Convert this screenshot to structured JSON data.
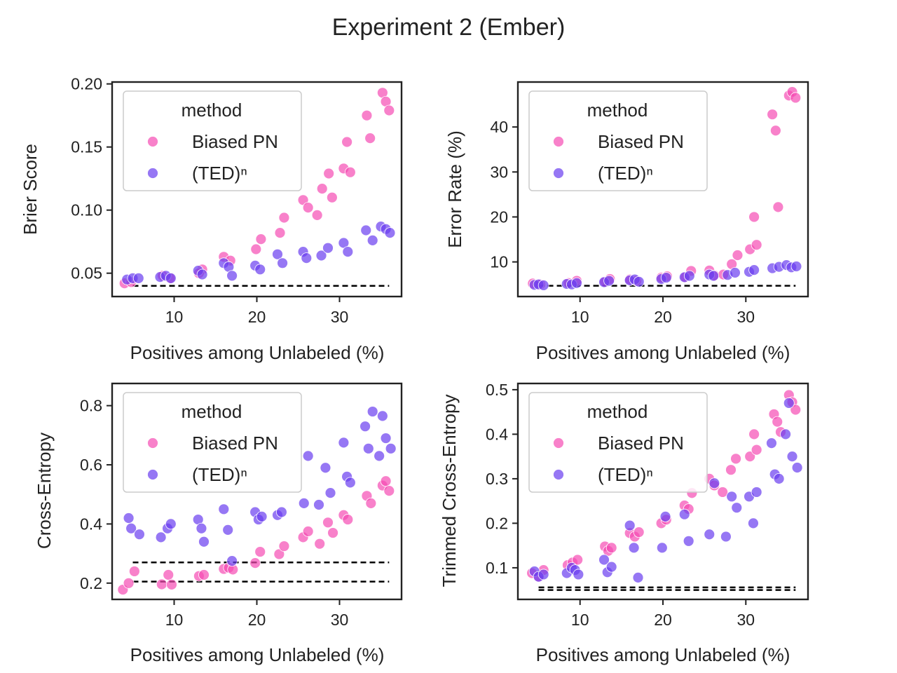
{
  "figure": {
    "title": "Experiment 2 (Ember)"
  },
  "colors": {
    "biased_pn": "#f54cb4",
    "ted_n": "#6a3df0",
    "frame": "#222222",
    "reference": "#000000"
  },
  "chart_data": [
    {
      "type": "scatter",
      "ylabel": "Brier Score",
      "xlabel": "Positives among Unlabeled (%)",
      "xlim": [
        2.5,
        37.5
      ],
      "ylim": [
        0.0315,
        0.2015
      ],
      "xticks": [
        10,
        20,
        30
      ],
      "yticks": [
        0.05,
        0.1,
        0.15,
        0.2
      ],
      "ytick_labels": [
        "0.05",
        "0.10",
        "0.15",
        "0.20"
      ],
      "grid": false,
      "legend": {
        "title": "method",
        "placement": "top-left",
        "entries": [
          "Biased PN",
          "(TED)ⁿ"
        ]
      },
      "reference_lines": [
        {
          "y": 0.04,
          "x": [
            5,
            36
          ]
        }
      ],
      "series": [
        {
          "name": "Biased PN",
          "color": "#f54cb4",
          "x": [
            4.0,
            4.8,
            8.6,
            9.5,
            13.4,
            13.0,
            16.0,
            16.8,
            19.9,
            20.5,
            22.8,
            23.3,
            25.6,
            26.2,
            27.3,
            27.9,
            28.7,
            29.1,
            30.5,
            30.9,
            31.3,
            33.3,
            33.7,
            35.2,
            35.6,
            36.0
          ],
          "y": [
            0.042,
            0.043,
            0.048,
            0.046,
            0.053,
            0.05,
            0.063,
            0.06,
            0.069,
            0.077,
            0.082,
            0.094,
            0.108,
            0.102,
            0.096,
            0.117,
            0.129,
            0.11,
            0.133,
            0.154,
            0.13,
            0.175,
            0.157,
            0.193,
            0.186,
            0.179
          ]
        },
        {
          "name": "(TED)ⁿ",
          "color": "#6a3df0",
          "x": [
            4.3,
            5.0,
            5.7,
            8.3,
            9.0,
            9.6,
            12.9,
            13.4,
            16.0,
            16.6,
            17.0,
            19.8,
            20.4,
            22.5,
            23.1,
            25.6,
            26.0,
            27.8,
            28.6,
            30.5,
            31.0,
            33.2,
            34.0,
            35.0,
            35.6,
            36.1
          ],
          "y": [
            0.045,
            0.046,
            0.046,
            0.047,
            0.048,
            0.046,
            0.052,
            0.049,
            0.058,
            0.055,
            0.048,
            0.056,
            0.053,
            0.065,
            0.058,
            0.067,
            0.062,
            0.064,
            0.07,
            0.074,
            0.067,
            0.084,
            0.076,
            0.087,
            0.085,
            0.082
          ]
        }
      ]
    },
    {
      "type": "scatter",
      "ylabel": "Error Rate (%)",
      "xlabel": "Positives among Unlabeled (%)",
      "xlim": [
        2.5,
        37.5
      ],
      "ylim": [
        2.3,
        50.0
      ],
      "xticks": [
        10,
        20,
        30
      ],
      "yticks": [
        10,
        20,
        30,
        40
      ],
      "ytick_labels": [
        "10",
        "20",
        "30",
        "40"
      ],
      "grid": false,
      "legend": {
        "title": "method",
        "placement": "top-left",
        "entries": [
          "Biased PN",
          "(TED)ⁿ"
        ]
      },
      "reference_lines": [
        {
          "y": 4.7,
          "x": [
            5,
            36
          ]
        }
      ],
      "series": [
        {
          "name": "Biased PN",
          "color": "#f54cb4",
          "x": [
            4.3,
            5.2,
            8.6,
            9.6,
            13.0,
            13.6,
            16.0,
            16.8,
            19.8,
            20.5,
            22.7,
            23.4,
            25.6,
            26.2,
            27.3,
            28.3,
            29.0,
            30.5,
            31.0,
            31.3,
            33.2,
            33.6,
            33.9,
            35.2,
            35.6,
            36.0
          ],
          "y": [
            5.2,
            5.0,
            5.3,
            5.8,
            5.6,
            6.2,
            6.1,
            5.8,
            6.5,
            6.8,
            6.6,
            8.0,
            8.1,
            7.0,
            7.2,
            9.5,
            11.5,
            12.8,
            20.0,
            13.8,
            42.8,
            39.2,
            22.2,
            47.0,
            47.8,
            46.5
          ]
        },
        {
          "name": "(TED)ⁿ",
          "color": "#6a3df0",
          "x": [
            4.5,
            5.0,
            5.6,
            8.4,
            9.0,
            9.6,
            12.9,
            13.5,
            16.0,
            16.6,
            17.1,
            19.8,
            20.4,
            22.6,
            23.2,
            25.6,
            26.1,
            27.8,
            28.7,
            30.4,
            31.0,
            33.2,
            34.0,
            34.9,
            35.5,
            36.1
          ],
          "y": [
            4.9,
            5.0,
            4.8,
            5.1,
            5.0,
            5.3,
            5.5,
            5.8,
            5.9,
            6.1,
            5.6,
            6.2,
            6.5,
            6.6,
            6.9,
            7.2,
            6.9,
            7.1,
            7.6,
            7.8,
            8.2,
            8.6,
            8.9,
            9.3,
            8.8,
            9.0
          ]
        }
      ]
    },
    {
      "type": "scatter",
      "ylabel": "Cross-Entropy",
      "xlabel": "Positives among Unlabeled (%)",
      "xlim": [
        2.5,
        37.5
      ],
      "ylim": [
        0.145,
        0.875
      ],
      "xticks": [
        10,
        20,
        30
      ],
      "yticks": [
        0.2,
        0.4,
        0.6,
        0.8
      ],
      "ytick_labels": [
        "0.2",
        "0.4",
        "0.6",
        "0.8"
      ],
      "grid": false,
      "legend": {
        "title": "method",
        "placement": "top-left",
        "entries": [
          "Biased PN",
          "(TED)ⁿ"
        ]
      },
      "reference_lines": [
        {
          "y": 0.27,
          "x": [
            5,
            36
          ]
        },
        {
          "y": 0.205,
          "x": [
            5,
            36
          ]
        }
      ],
      "series": [
        {
          "name": "Biased PN",
          "color": "#f54cb4",
          "x": [
            3.8,
            4.5,
            5.2,
            8.5,
            9.3,
            9.7,
            13.0,
            13.6,
            16.0,
            16.6,
            17.1,
            19.8,
            20.4,
            22.7,
            23.3,
            25.6,
            26.2,
            27.6,
            28.6,
            29.2,
            30.5,
            31.0,
            33.3,
            33.8,
            35.2,
            35.6,
            36.0
          ],
          "y": [
            0.178,
            0.2,
            0.24,
            0.196,
            0.228,
            0.195,
            0.224,
            0.228,
            0.248,
            0.252,
            0.246,
            0.268,
            0.306,
            0.298,
            0.325,
            0.355,
            0.375,
            0.333,
            0.405,
            0.37,
            0.43,
            0.415,
            0.495,
            0.47,
            0.53,
            0.545,
            0.512
          ]
        },
        {
          "name": "(TED)ⁿ",
          "color": "#6a3df0",
          "x": [
            4.5,
            4.8,
            5.8,
            8.4,
            9.2,
            9.6,
            12.9,
            13.3,
            13.6,
            16.0,
            16.5,
            17.0,
            19.8,
            20.2,
            20.6,
            22.5,
            23.0,
            25.7,
            26.2,
            27.5,
            28.3,
            28.9,
            30.5,
            30.9,
            31.3,
            33.1,
            33.5,
            34.0,
            34.8,
            35.2,
            35.6,
            36.2
          ],
          "y": [
            0.42,
            0.385,
            0.365,
            0.355,
            0.385,
            0.4,
            0.415,
            0.385,
            0.34,
            0.45,
            0.38,
            0.275,
            0.44,
            0.415,
            0.425,
            0.43,
            0.44,
            0.47,
            0.63,
            0.465,
            0.59,
            0.505,
            0.675,
            0.56,
            0.54,
            0.73,
            0.655,
            0.78,
            0.63,
            0.765,
            0.69,
            0.655
          ]
        }
      ]
    },
    {
      "type": "scatter",
      "ylabel": "Trimmed Cross-Entropy",
      "xlabel": "Positives among Unlabeled (%)",
      "xlim": [
        2.5,
        37.5
      ],
      "ylim": [
        0.029,
        0.514
      ],
      "xticks": [
        10,
        20,
        30
      ],
      "yticks": [
        0.1,
        0.2,
        0.3,
        0.4,
        0.5
      ],
      "ytick_labels": [
        "0.1",
        "0.2",
        "0.3",
        "0.4",
        "0.5"
      ],
      "grid": false,
      "legend": {
        "title": "method",
        "placement": "top-left",
        "entries": [
          "Biased PN",
          "(TED)ⁿ"
        ]
      },
      "reference_lines": [
        {
          "y": 0.056,
          "x": [
            5,
            36
          ]
        },
        {
          "y": 0.05,
          "x": [
            5,
            36
          ]
        }
      ],
      "series": [
        {
          "name": "Biased PN",
          "color": "#f54cb4",
          "x": [
            4.2,
            5.0,
            5.6,
            8.5,
            9.1,
            9.7,
            13.0,
            13.4,
            13.8,
            16.0,
            16.6,
            17.1,
            19.8,
            20.4,
            22.6,
            23.1,
            23.5,
            25.6,
            26.2,
            27.2,
            28.2,
            28.8,
            30.5,
            31.0,
            31.3,
            33.4,
            33.8,
            34.2,
            35.2,
            35.6,
            36.0
          ],
          "y": [
            0.088,
            0.08,
            0.095,
            0.106,
            0.112,
            0.118,
            0.148,
            0.138,
            0.145,
            0.178,
            0.17,
            0.18,
            0.2,
            0.208,
            0.24,
            0.232,
            0.268,
            0.3,
            0.285,
            0.27,
            0.32,
            0.345,
            0.35,
            0.4,
            0.365,
            0.445,
            0.428,
            0.405,
            0.488,
            0.472,
            0.455
          ]
        },
        {
          "name": "(TED)ⁿ",
          "color": "#6a3df0",
          "x": [
            4.5,
            5.0,
            5.6,
            8.4,
            9.0,
            9.4,
            9.8,
            12.9,
            13.3,
            13.8,
            16.0,
            16.5,
            17.0,
            19.9,
            20.3,
            22.6,
            23.1,
            25.6,
            26.2,
            27.6,
            28.3,
            28.9,
            30.4,
            30.9,
            31.3,
            33.1,
            33.5,
            34.0,
            34.8,
            35.2,
            35.6,
            36.2
          ],
          "y": [
            0.092,
            0.08,
            0.085,
            0.088,
            0.1,
            0.095,
            0.085,
            0.118,
            0.09,
            0.102,
            0.195,
            0.145,
            0.078,
            0.145,
            0.215,
            0.22,
            0.16,
            0.175,
            0.29,
            0.17,
            0.26,
            0.235,
            0.26,
            0.2,
            0.27,
            0.38,
            0.31,
            0.3,
            0.4,
            0.47,
            0.35,
            0.325
          ]
        }
      ]
    }
  ]
}
